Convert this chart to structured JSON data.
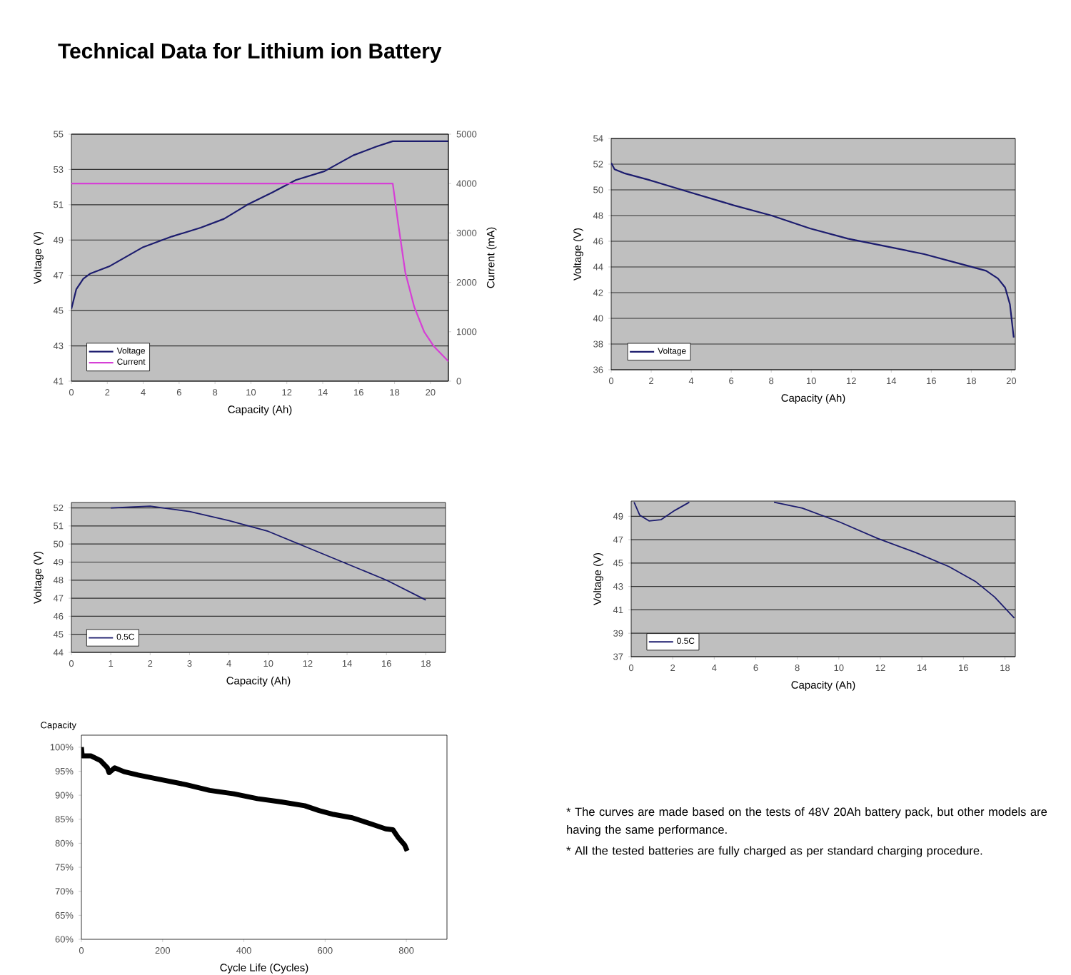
{
  "chart_data": [
    {
      "type": "line",
      "title": "Technical Data for Lithium ion Battery",
      "xlabel": "Capacity (Ah)",
      "ylabel": "Voltage (V)",
      "y2label": "Current (mA)",
      "xlim": [
        0,
        21
      ],
      "xticks": [
        0,
        2,
        4,
        6,
        8,
        10,
        12,
        14,
        16,
        18,
        20
      ],
      "ylim": [
        41,
        55
      ],
      "yticks": [
        41,
        43,
        45,
        47,
        49,
        51,
        53,
        55
      ],
      "y2lim": [
        0,
        5000
      ],
      "y2ticks": [
        0,
        1000,
        2000,
        3000,
        4000,
        5000
      ],
      "grid": "y",
      "legend": "bottom left",
      "series": [
        {
          "name": "Voltage",
          "color": "#1c1c6e",
          "x": [
            0,
            0.27,
            0.66,
            1.06,
            2.1,
            4,
            5.6,
            7.2,
            8.5,
            9.8,
            11.2,
            12.5,
            14.1,
            15.7,
            17,
            17.9,
            21
          ],
          "values": [
            45.1,
            46.2,
            46.8,
            47.1,
            47.5,
            48.6,
            49.2,
            49.7,
            50.2,
            51.0,
            51.7,
            52.4,
            52.9,
            53.8,
            54.3,
            54.6,
            54.6
          ]
        },
        {
          "name": "Current",
          "color": "#d63fd6",
          "axis": "y2",
          "x": [
            0,
            17.9,
            18.2,
            18.6,
            19.1,
            19.65,
            20.2,
            21
          ],
          "values": [
            4000,
            4000,
            3200,
            2200,
            1500,
            1000,
            700,
            400
          ]
        }
      ]
    },
    {
      "type": "line",
      "xlabel": "Capacity (Ah)",
      "ylabel": "Voltage (V)",
      "xlim": [
        0,
        20.2
      ],
      "xticks": [
        0,
        2,
        4,
        6,
        8,
        10,
        12,
        14,
        16,
        18,
        20
      ],
      "ylim": [
        36,
        54
      ],
      "yticks": [
        36,
        38,
        40,
        42,
        44,
        46,
        48,
        50,
        52,
        54
      ],
      "grid": "y",
      "legend": "bottom left",
      "series": [
        {
          "name": "Voltage",
          "color": "#1c1c6e",
          "x": [
            0,
            0.17,
            0.64,
            1.83,
            3.74,
            6.12,
            8.02,
            9.93,
            11.83,
            13.74,
            15.64,
            17.55,
            18.74,
            19.33,
            19.69,
            19.93,
            20.12
          ],
          "values": [
            52.1,
            51.6,
            51.3,
            50.8,
            49.9,
            48.8,
            48.0,
            47.0,
            46.2,
            45.6,
            45.0,
            44.2,
            43.7,
            43.1,
            42.4,
            41.1,
            38.5
          ]
        }
      ]
    },
    {
      "type": "line",
      "xlabel": "Capacity (Ah)",
      "ylabel": "Voltage (V)",
      "categories": [
        "0",
        "1",
        "2",
        "3",
        "4",
        "10",
        "12",
        "14",
        "16",
        "18"
      ],
      "ylim": [
        44,
        52.3
      ],
      "yticks": [
        44,
        45,
        46,
        47,
        48,
        49,
        50,
        51,
        52
      ],
      "grid": "y",
      "legend": "bottom left",
      "series": [
        {
          "name": "0.5C",
          "color": "#1c1c6e",
          "values": [
            null,
            52.0,
            52.1,
            51.8,
            51.3,
            50.7,
            49.8,
            48.9,
            48.0,
            46.9
          ]
        }
      ]
    },
    {
      "type": "line",
      "xlabel": "Capacity (Ah)",
      "ylabel": "Voltage (V)",
      "xlim": [
        0,
        18.5
      ],
      "xticks": [
        0,
        2,
        4,
        6,
        8,
        10,
        12,
        14,
        16,
        18
      ],
      "ylim": [
        37,
        50.3
      ],
      "yticks": [
        37,
        39,
        41,
        43,
        45,
        47,
        49
      ],
      "grid": "y",
      "legend": "bottom left",
      "series": [
        {
          "name": "0.5C",
          "color": "#1c1c6e",
          "x": [
            0.14,
            0.41,
            0.86,
            1.43,
            2.1,
            2.8,
            5.0,
            6.88,
            8.24,
            10.05,
            11.87,
            13.7,
            15.3,
            16.6,
            17.5,
            18.45
          ],
          "values": [
            50.2,
            49.1,
            48.6,
            48.7,
            49.5,
            50.2,
            null,
            50.2,
            49.7,
            48.5,
            47.1,
            45.9,
            44.7,
            43.4,
            42.1,
            40.3
          ]
        }
      ]
    },
    {
      "type": "line",
      "xlabel": "Cycle Life (Cycles)",
      "ylabel": "Capacity",
      "xlim": [
        0,
        900
      ],
      "xticks": [
        0,
        200,
        400,
        600,
        800
      ],
      "ylim": [
        60,
        102.5
      ],
      "yticks": [
        {
          "value": 60,
          "label": "60%"
        },
        {
          "value": 65,
          "label": "65%"
        },
        {
          "value": 70,
          "label": "70%"
        },
        {
          "value": 75,
          "label": "75%"
        },
        {
          "value": 80,
          "label": "80%"
        },
        {
          "value": 85,
          "label": "85%"
        },
        {
          "value": 90,
          "label": "90%"
        },
        {
          "value": 95,
          "label": "95%"
        },
        {
          "value": 100,
          "label": "100%"
        }
      ],
      "series": [
        {
          "color": "#000000",
          "x": [
            0,
            2,
            23,
            47,
            64,
            68,
            82,
            105,
            140,
            199,
            258,
            316,
            375,
            433,
            492,
            550,
            585,
            621,
            667,
            714,
            749,
            767,
            779,
            796,
            802
          ],
          "values": [
            100,
            98.2,
            98.2,
            97.2,
            95.7,
            94.7,
            95.7,
            94.9,
            94.2,
            93.2,
            92.2,
            91.0,
            90.3,
            89.3,
            88.6,
            87.8,
            86.8,
            86.0,
            85.3,
            84.0,
            83.0,
            82.8,
            81.3,
            79.6,
            78.4
          ]
        }
      ]
    },
    {
      "type": "other",
      "annotations": [
        "* The curves are made based on the tests of 48V 20Ah battery pack, but other models are having the same performance.",
        "* All the tested batteries are fully charged as per standard charging procedure."
      ]
    }
  ]
}
